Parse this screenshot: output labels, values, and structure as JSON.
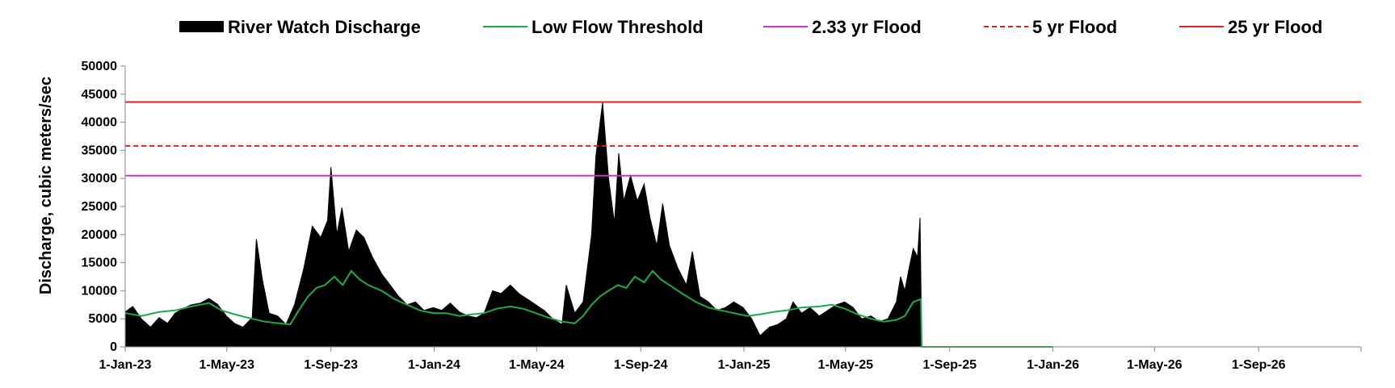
{
  "chart_data": {
    "type": "area",
    "xlabel": "",
    "ylabel": "Discharge, cubic meters/sec",
    "ylim": [
      0,
      50000
    ],
    "yticks": [
      0,
      5000,
      10000,
      15000,
      20000,
      25000,
      30000,
      35000,
      40000,
      45000,
      50000
    ],
    "xlim": [
      "2023-01-01",
      "2026-12-31"
    ],
    "xticks": [
      {
        "date": "2023-01-01",
        "label": "1-Jan-23"
      },
      {
        "date": "2023-05-01",
        "label": "1-May-23"
      },
      {
        "date": "2023-09-01",
        "label": "1-Sep-23"
      },
      {
        "date": "2024-01-01",
        "label": "1-Jan-24"
      },
      {
        "date": "2024-05-01",
        "label": "1-May-24"
      },
      {
        "date": "2024-09-01",
        "label": "1-Sep-24"
      },
      {
        "date": "2025-01-01",
        "label": "1-Jan-25"
      },
      {
        "date": "2025-05-01",
        "label": "1-May-25"
      },
      {
        "date": "2025-09-01",
        "label": "1-Sep-25"
      },
      {
        "date": "2026-01-01",
        "label": "1-Jan-26"
      },
      {
        "date": "2026-05-01",
        "label": "1-May-26"
      },
      {
        "date": "2026-09-01",
        "label": "1-Sep-26"
      }
    ],
    "legend_position": "top",
    "legend": [
      {
        "name": "River Watch Discharge",
        "style": "area",
        "color": "#000000"
      },
      {
        "name": "Low Flow Threshold",
        "style": "line",
        "color": "#1faa4a"
      },
      {
        "name": "2.33 yr Flood",
        "style": "line",
        "color": "#cc33cc"
      },
      {
        "name": "5 yr Flood",
        "style": "dashed",
        "color": "#e02020"
      },
      {
        "name": "25 yr Flood",
        "style": "line",
        "color": "#e02020"
      }
    ],
    "thresholds": [
      {
        "name": "2.33 yr Flood",
        "value": 30500,
        "color": "#cc33cc",
        "dashed": false
      },
      {
        "name": "5 yr Flood",
        "value": 35800,
        "color": "#e02020",
        "dashed": true
      },
      {
        "name": "25 yr Flood",
        "value": 43600,
        "color": "#e02020",
        "dashed": false
      }
    ],
    "series": [
      {
        "name": "River Watch Discharge",
        "color": "#000000",
        "points": [
          [
            "2023-01-01",
            6200
          ],
          [
            "2023-01-10",
            7200
          ],
          [
            "2023-01-20",
            5000
          ],
          [
            "2023-01-31",
            3500
          ],
          [
            "2023-02-10",
            5200
          ],
          [
            "2023-02-20",
            4200
          ],
          [
            "2023-03-01",
            6000
          ],
          [
            "2023-03-10",
            6800
          ],
          [
            "2023-03-20",
            7500
          ],
          [
            "2023-03-31",
            7800
          ],
          [
            "2023-04-10",
            8600
          ],
          [
            "2023-04-20",
            7600
          ],
          [
            "2023-05-01",
            5400
          ],
          [
            "2023-05-10",
            4200
          ],
          [
            "2023-05-20",
            3500
          ],
          [
            "2023-05-31",
            5200
          ],
          [
            "2023-06-05",
            19200
          ],
          [
            "2023-06-12",
            12000
          ],
          [
            "2023-06-20",
            6000
          ],
          [
            "2023-06-30",
            5500
          ],
          [
            "2023-07-10",
            4000
          ],
          [
            "2023-07-20",
            7500
          ],
          [
            "2023-07-31",
            14000
          ],
          [
            "2023-08-10",
            21500
          ],
          [
            "2023-08-20",
            19500
          ],
          [
            "2023-08-28",
            22500
          ],
          [
            "2023-09-01",
            32000
          ],
          [
            "2023-09-08",
            20000
          ],
          [
            "2023-09-14",
            24800
          ],
          [
            "2023-09-22",
            17000
          ],
          [
            "2023-10-01",
            20800
          ],
          [
            "2023-10-10",
            19500
          ],
          [
            "2023-10-20",
            16000
          ],
          [
            "2023-10-31",
            13000
          ],
          [
            "2023-11-10",
            11000
          ],
          [
            "2023-11-20",
            9000
          ],
          [
            "2023-11-30",
            7500
          ],
          [
            "2023-12-10",
            8000
          ],
          [
            "2023-12-20",
            6500
          ],
          [
            "2023-12-31",
            7000
          ],
          [
            "2024-01-10",
            6500
          ],
          [
            "2024-01-20",
            7800
          ],
          [
            "2024-01-31",
            6200
          ],
          [
            "2024-02-10",
            5500
          ],
          [
            "2024-02-20",
            5200
          ],
          [
            "2024-02-29",
            6000
          ],
          [
            "2024-03-10",
            10000
          ],
          [
            "2024-03-20",
            9500
          ],
          [
            "2024-03-31",
            11000
          ],
          [
            "2024-04-10",
            9500
          ],
          [
            "2024-04-20",
            8500
          ],
          [
            "2024-04-30",
            7500
          ],
          [
            "2024-05-10",
            6500
          ],
          [
            "2024-05-20",
            5000
          ],
          [
            "2024-05-31",
            4000
          ],
          [
            "2024-06-05",
            11000
          ],
          [
            "2024-06-15",
            6000
          ],
          [
            "2024-06-25",
            8000
          ],
          [
            "2024-07-05",
            20000
          ],
          [
            "2024-07-10",
            34000
          ],
          [
            "2024-07-18",
            43500
          ],
          [
            "2024-07-25",
            30000
          ],
          [
            "2024-08-01",
            22000
          ],
          [
            "2024-08-06",
            34500
          ],
          [
            "2024-08-12",
            26000
          ],
          [
            "2024-08-20",
            30500
          ],
          [
            "2024-08-28",
            26000
          ],
          [
            "2024-09-05",
            29000
          ],
          [
            "2024-09-12",
            23000
          ],
          [
            "2024-09-20",
            18000
          ],
          [
            "2024-09-27",
            25500
          ],
          [
            "2024-10-05",
            18000
          ],
          [
            "2024-10-15",
            14000
          ],
          [
            "2024-10-25",
            11000
          ],
          [
            "2024-11-01",
            17000
          ],
          [
            "2024-11-10",
            9000
          ],
          [
            "2024-11-20",
            8000
          ],
          [
            "2024-11-30",
            6500
          ],
          [
            "2024-12-10",
            7000
          ],
          [
            "2024-12-20",
            8000
          ],
          [
            "2024-12-31",
            7000
          ],
          [
            "2025-01-10",
            5000
          ],
          [
            "2025-01-20",
            2000
          ],
          [
            "2025-01-31",
            3500
          ],
          [
            "2025-02-10",
            4000
          ],
          [
            "2025-02-20",
            5000
          ],
          [
            "2025-02-28",
            8000
          ],
          [
            "2025-03-10",
            6000
          ],
          [
            "2025-03-20",
            7000
          ],
          [
            "2025-03-31",
            5500
          ],
          [
            "2025-04-10",
            6500
          ],
          [
            "2025-04-20",
            7500
          ],
          [
            "2025-04-30",
            8000
          ],
          [
            "2025-05-10",
            7000
          ],
          [
            "2025-05-20",
            5000
          ],
          [
            "2025-05-31",
            5500
          ],
          [
            "2025-06-10",
            4500
          ],
          [
            "2025-06-20",
            5000
          ],
          [
            "2025-06-30",
            8000
          ],
          [
            "2025-07-05",
            12500
          ],
          [
            "2025-07-10",
            10000
          ],
          [
            "2025-07-15",
            14000
          ],
          [
            "2025-07-20",
            17500
          ],
          [
            "2025-07-25",
            16000
          ],
          [
            "2025-07-28",
            23000
          ],
          [
            "2025-07-30",
            0
          ]
        ]
      },
      {
        "name": "Low Flow Threshold",
        "color": "#1faa4a",
        "points": [
          [
            "2023-01-01",
            6000
          ],
          [
            "2023-01-20",
            5500
          ],
          [
            "2023-02-10",
            6200
          ],
          [
            "2023-03-01",
            6500
          ],
          [
            "2023-03-20",
            7200
          ],
          [
            "2023-04-10",
            7800
          ],
          [
            "2023-04-25",
            6500
          ],
          [
            "2023-05-10",
            5800
          ],
          [
            "2023-05-31",
            5000
          ],
          [
            "2023-06-15",
            4500
          ],
          [
            "2023-07-01",
            4200
          ],
          [
            "2023-07-15",
            4000
          ],
          [
            "2023-07-25",
            6500
          ],
          [
            "2023-08-05",
            9000
          ],
          [
            "2023-08-15",
            10500
          ],
          [
            "2023-08-25",
            11000
          ],
          [
            "2023-09-05",
            12500
          ],
          [
            "2023-09-15",
            11000
          ],
          [
            "2023-09-25",
            13500
          ],
          [
            "2023-10-05",
            12000
          ],
          [
            "2023-10-15",
            11000
          ],
          [
            "2023-10-31",
            10000
          ],
          [
            "2023-11-15",
            8500
          ],
          [
            "2023-11-30",
            7500
          ],
          [
            "2023-12-15",
            6500
          ],
          [
            "2023-12-31",
            6000
          ],
          [
            "2024-01-15",
            6000
          ],
          [
            "2024-01-31",
            5500
          ],
          [
            "2024-02-15",
            5800
          ],
          [
            "2024-02-29",
            6000
          ],
          [
            "2024-03-15",
            6800
          ],
          [
            "2024-03-31",
            7200
          ],
          [
            "2024-04-15",
            6800
          ],
          [
            "2024-04-30",
            6000
          ],
          [
            "2024-05-15",
            5200
          ],
          [
            "2024-05-31",
            4500
          ],
          [
            "2024-06-15",
            4200
          ],
          [
            "2024-06-25",
            5500
          ],
          [
            "2024-07-05",
            7500
          ],
          [
            "2024-07-15",
            9000
          ],
          [
            "2024-07-25",
            10000
          ],
          [
            "2024-08-05",
            11000
          ],
          [
            "2024-08-15",
            10500
          ],
          [
            "2024-08-25",
            12500
          ],
          [
            "2024-09-05",
            11500
          ],
          [
            "2024-09-15",
            13500
          ],
          [
            "2024-09-25",
            12000
          ],
          [
            "2024-10-05",
            11000
          ],
          [
            "2024-10-20",
            9500
          ],
          [
            "2024-11-05",
            8000
          ],
          [
            "2024-11-20",
            7000
          ],
          [
            "2024-12-05",
            6500
          ],
          [
            "2024-12-20",
            6000
          ],
          [
            "2025-01-05",
            5500
          ],
          [
            "2025-01-20",
            5800
          ],
          [
            "2025-02-05",
            6200
          ],
          [
            "2025-02-20",
            6500
          ],
          [
            "2025-03-10",
            7000
          ],
          [
            "2025-03-31",
            7200
          ],
          [
            "2025-04-15",
            7500
          ],
          [
            "2025-04-30",
            6800
          ],
          [
            "2025-05-15",
            5800
          ],
          [
            "2025-05-31",
            5000
          ],
          [
            "2025-06-15",
            4500
          ],
          [
            "2025-06-30",
            4800
          ],
          [
            "2025-07-10",
            5500
          ],
          [
            "2025-07-20",
            8000
          ],
          [
            "2025-07-29",
            8500
          ],
          [
            "2025-07-30",
            0
          ],
          [
            "2026-01-01",
            0
          ]
        ]
      }
    ]
  }
}
